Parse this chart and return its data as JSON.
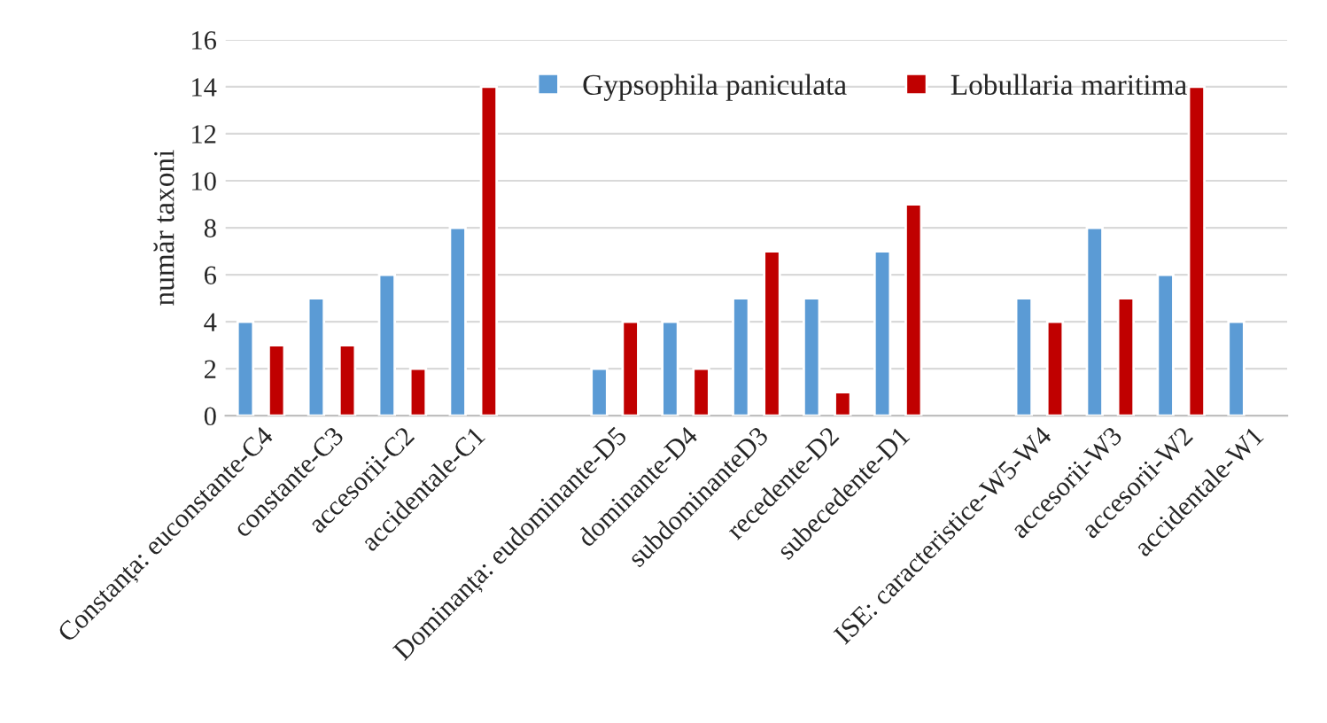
{
  "chart_data": {
    "type": "bar",
    "ylabel": "număr taxoni",
    "categories": [
      "Constanța: euconstante-C4",
      "constante-C3",
      "accesorii-C2",
      "accidentale-C1",
      null,
      "Dominanța: eudominante-D5",
      "dominante-D4",
      "subdominanteD3",
      "recedente-D2",
      "subecedente-D1",
      null,
      "ISE: caracteristice-W5-W4",
      "accesorii-W3",
      "accesorii-W2",
      "accidentale-W1"
    ],
    "series": [
      {
        "name": "Gypsophila paniculata",
        "color": "#5b9bd5",
        "values": [
          4,
          5,
          6,
          8,
          null,
          2,
          4,
          5,
          5,
          7,
          null,
          5,
          8,
          6,
          4
        ]
      },
      {
        "name": "Lobullaria maritima",
        "color": "#c00000",
        "values": [
          3,
          3,
          2,
          14,
          null,
          4,
          2,
          7,
          1,
          9,
          null,
          4,
          5,
          14,
          null
        ]
      }
    ],
    "ylim": [
      0,
      16
    ],
    "yticks": [
      0,
      2,
      4,
      6,
      8,
      10,
      12,
      14,
      16
    ],
    "grid": "y",
    "legend": "top"
  }
}
